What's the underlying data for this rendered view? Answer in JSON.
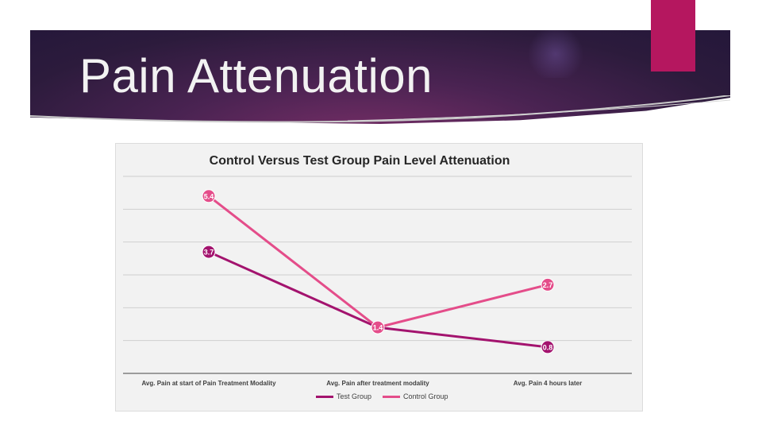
{
  "slide": {
    "title": "Pain Attenuation"
  },
  "colors": {
    "banner": "#2c1b3c",
    "accent": "#b5175f",
    "test_group": "#a3136e",
    "control_group": "#e44d8a"
  },
  "chart_data": {
    "type": "line",
    "title": "Control Versus Test Group Pain Level Attenuation",
    "categories": [
      "Avg. Pain at start of  Pain Treatment Modality",
      "Avg. Pain after treatment modality",
      "Avg. Pain 4 hours later"
    ],
    "series": [
      {
        "name": "Test Group",
        "values": [
          3.7,
          1.4,
          0.8
        ],
        "color": "#a3136e"
      },
      {
        "name": "Control Group",
        "values": [
          5.4,
          1.4,
          2.7
        ],
        "color": "#e44d8a"
      }
    ],
    "data_labels": true,
    "ylim": [
      0,
      6
    ],
    "grid": true,
    "legend_position": "bottom"
  }
}
